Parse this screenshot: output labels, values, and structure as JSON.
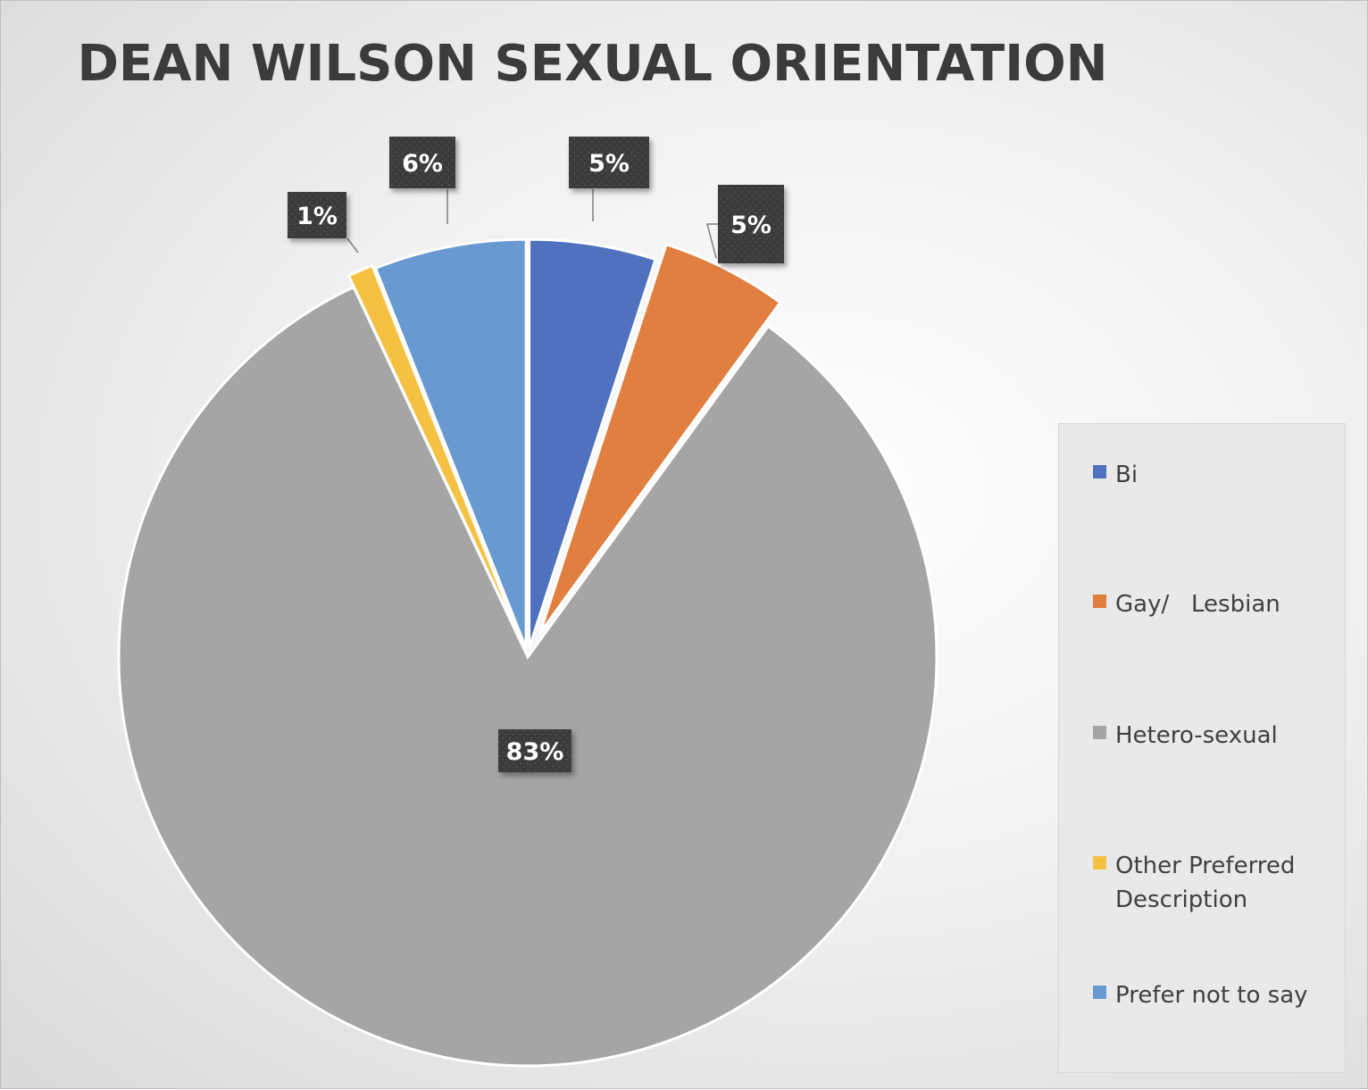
{
  "chart_data": {
    "type": "pie",
    "title": "DEAN WILSON SEXUAL ORIENTATION",
    "categories": [
      "Bi",
      "Gay/   Lesbian",
      "Hetero-sexual",
      "Other Preferred Description",
      "Prefer not to say"
    ],
    "values": [
      5,
      5,
      83,
      1,
      6
    ],
    "data_labels": [
      "5%",
      "5%",
      "83%",
      "1%",
      "6%"
    ],
    "colors": [
      "#4f71be",
      "#e07f3f",
      "#a5a5a5",
      "#f6c143",
      "#6899d0"
    ],
    "legend": "right",
    "exploded": true
  }
}
